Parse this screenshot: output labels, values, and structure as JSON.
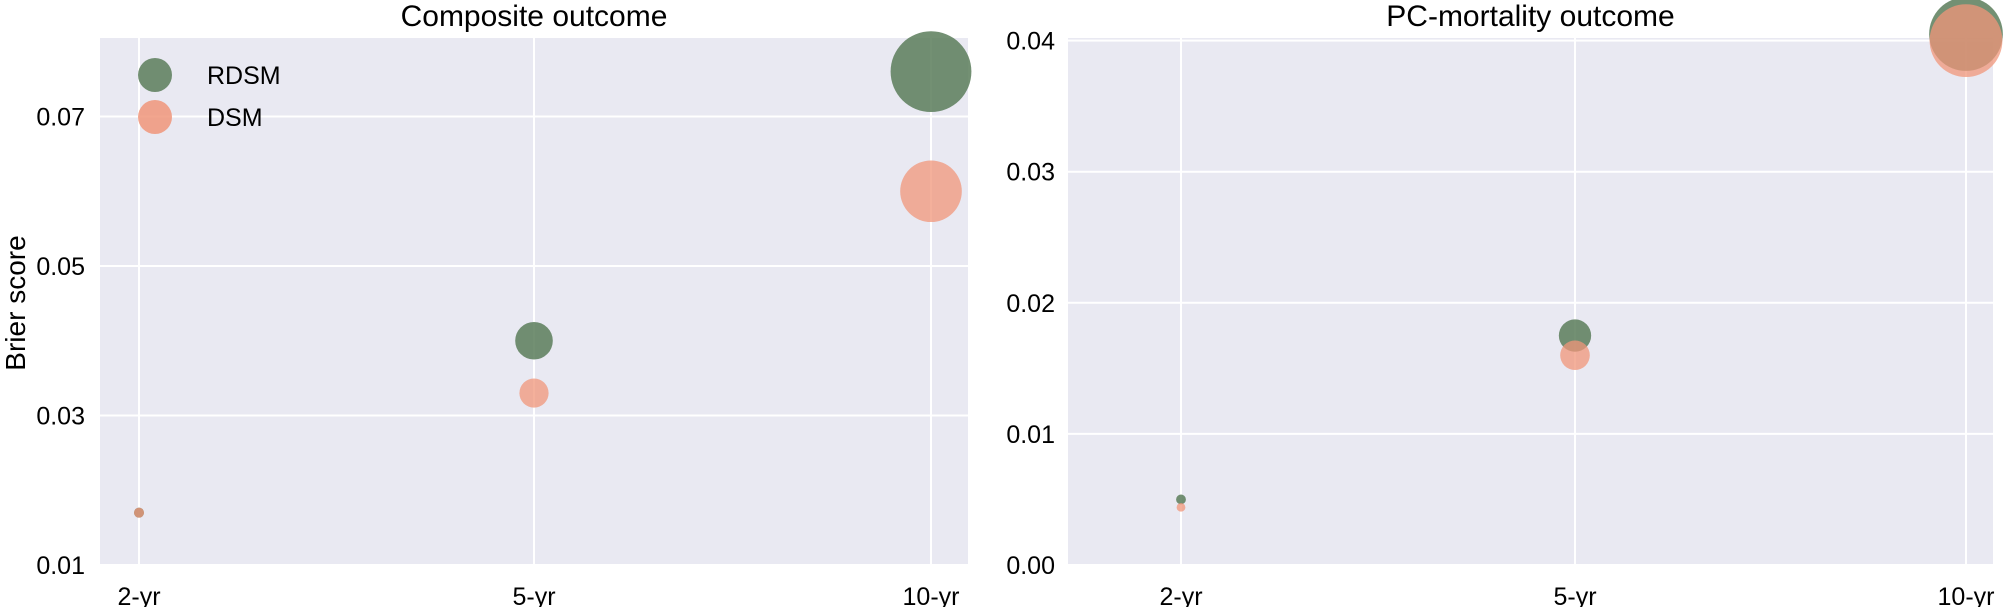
{
  "colors": {
    "RDSM": "#5b7d5b",
    "DSM": "#f0957a",
    "panel_bg": "#e9e9f2",
    "grid": "#ffffff"
  },
  "chart_data": [
    {
      "type": "scatter",
      "title": "Composite outcome",
      "ylabel": "Brier score",
      "xlabel": "",
      "categories": [
        "2-yr",
        "5-yr",
        "10-yr"
      ],
      "yticks": [
        "0.01",
        "0.03",
        "0.05",
        "0.07"
      ],
      "ylim": [
        0.01,
        0.0805
      ],
      "grid": true,
      "legend": "top-left",
      "series": [
        {
          "name": "RDSM",
          "values": [
            0.017,
            0.04,
            0.076
          ],
          "sizes": [
            0.017,
            0.04,
            0.076
          ]
        },
        {
          "name": "DSM",
          "values": [
            0.017,
            0.033,
            0.06
          ],
          "sizes": [
            0.017,
            0.033,
            0.06
          ]
        }
      ]
    },
    {
      "type": "scatter",
      "title": "PC-mortality outcome",
      "ylabel": "",
      "xlabel": "",
      "categories": [
        "2-yr",
        "5-yr",
        "10-yr"
      ],
      "yticks": [
        "0.00",
        "0.01",
        "0.02",
        "0.03",
        "0.04"
      ],
      "ylim": [
        0.0,
        0.0402
      ],
      "grid": true,
      "series": [
        {
          "name": "RDSM",
          "values": [
            0.005,
            0.0175,
            0.0405
          ],
          "sizes": [
            0.005,
            0.0175,
            0.0405
          ]
        },
        {
          "name": "DSM",
          "values": [
            0.0044,
            0.016,
            0.04
          ],
          "sizes": [
            0.0044,
            0.016,
            0.04
          ]
        }
      ]
    }
  ]
}
